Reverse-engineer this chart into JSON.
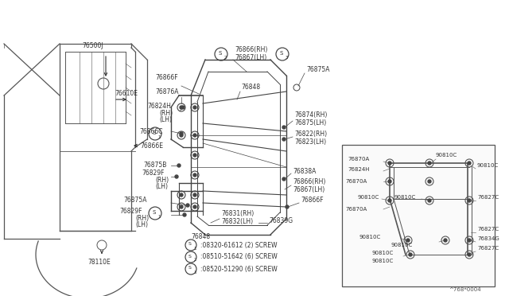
{
  "background_color": "#ffffff",
  "fig_w": 6.4,
  "fig_h": 3.72,
  "dpi": 100,
  "part_number_ref": "^768*0004",
  "screw_notes": [
    "S1:08320-61612 (2) SCREW",
    "S2:08510-51642 (6) SCREW",
    "S3:08520-51290 (6) SCREW"
  ]
}
